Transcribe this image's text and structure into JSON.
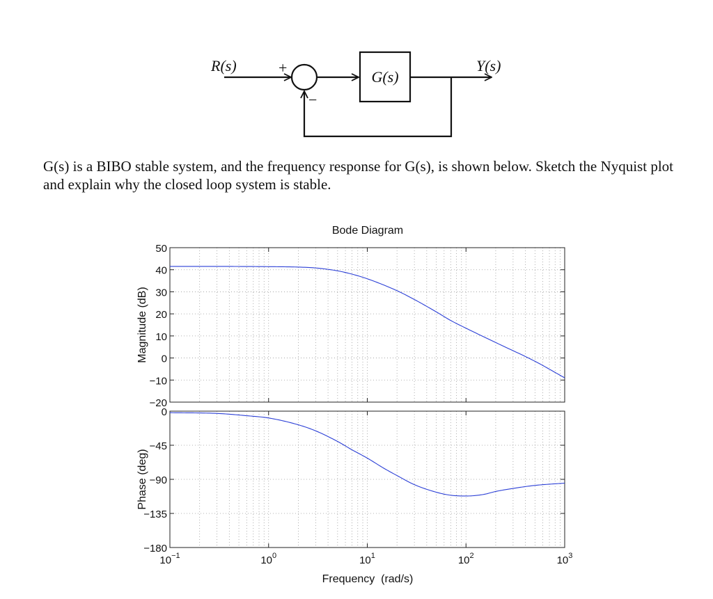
{
  "block_diagram": {
    "input_label": "R(s)",
    "output_label": "Y(s)",
    "plant_label": "G(s)",
    "plus_sign": "+",
    "minus_sign": "−"
  },
  "problem_text": "G(s) is a BIBO stable system, and the frequency response for G(s), is shown below. Sketch the Nyquist plot and explain why the closed loop system is stable.",
  "chart_data": {
    "type": "line",
    "title": "Bode Diagram",
    "xlabel": "Frequency  (rad/s)",
    "x_scale": "log",
    "xlim": [
      0.1,
      1000
    ],
    "grid": true,
    "line_color": "#2b3fd6",
    "x_tick_values": [
      0.1,
      1,
      10,
      100,
      1000
    ],
    "x_ticks": [
      {
        "base": "10",
        "exp": "−1"
      },
      {
        "base": "10",
        "exp": "0"
      },
      {
        "base": "10",
        "exp": "1"
      },
      {
        "base": "10",
        "exp": "2"
      },
      {
        "base": "10",
        "exp": "3"
      }
    ],
    "panels": [
      {
        "name": "magnitude",
        "ylabel": "Magnitude (dB)",
        "ylim": [
          -20,
          50
        ],
        "y_tick_values": [
          50,
          40,
          30,
          20,
          10,
          0,
          -10,
          -20
        ],
        "y_tick_labels": [
          "50",
          "40",
          "30",
          "20",
          "10",
          "0",
          "−10",
          "−20"
        ],
        "series": [
          {
            "x": [
              0.1,
              0.3,
              1,
              2,
              3,
              5,
              7,
              10,
              20,
              30,
              50,
              70,
              100,
              200,
              500,
              1000
            ],
            "values": [
              41.5,
              41.5,
              41.4,
              41.2,
              40.8,
              39.5,
              38,
              35.9,
              30.5,
              26.5,
              20.9,
              17,
              13.5,
              7,
              -1.5,
              -9
            ]
          }
        ]
      },
      {
        "name": "phase",
        "ylabel": "Phase (deg)",
        "ylim": [
          -180,
          0
        ],
        "y_tick_values": [
          0,
          -45,
          -90,
          -135,
          -180
        ],
        "y_tick_labels": [
          "0",
          "−45",
          "−90",
          "−135",
          "−180"
        ],
        "series": [
          {
            "x": [
              0.1,
              0.3,
              0.6,
              1,
              2,
              3,
              5,
              7,
              10,
              15,
              20,
              30,
              50,
              70,
              100,
              150,
              200,
              300,
              500,
              1000
            ],
            "values": [
              -2,
              -3,
              -6,
              -9,
              -18,
              -26,
              -40,
              -51,
              -62,
              -76,
              -85,
              -97,
              -107,
              -111,
              -112,
              -110,
              -106,
              -102,
              -98,
              -95
            ]
          }
        ]
      }
    ]
  }
}
